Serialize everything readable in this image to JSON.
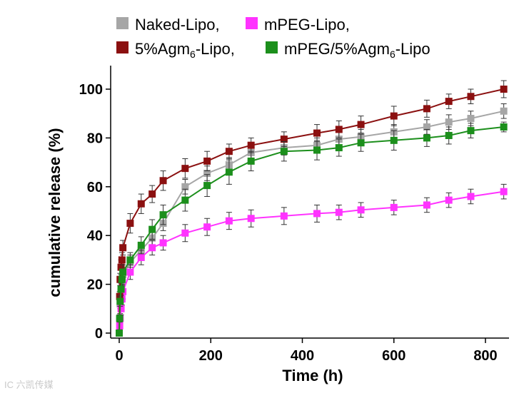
{
  "chart_data": {
    "type": "line",
    "title": "",
    "xlabel": "Time (h)",
    "ylabel": "cumulative release (%)",
    "xlim": [
      0,
      840
    ],
    "ylim": [
      0,
      110
    ],
    "x_ticks": [
      0,
      200,
      400,
      600,
      800
    ],
    "y_ticks": [
      0,
      20,
      40,
      60,
      80,
      100
    ],
    "x_tick_labels": [
      "0",
      "200",
      "400",
      "600",
      "800"
    ],
    "y_tick_labels": [
      "0",
      "20",
      "40",
      "60",
      "80",
      "100"
    ],
    "grid": false,
    "legend_position": "top",
    "x": [
      0,
      1,
      2,
      4,
      6,
      8,
      24,
      48,
      72,
      96,
      144,
      192,
      240,
      288,
      360,
      432,
      480,
      528,
      600,
      672,
      720,
      768,
      840
    ],
    "series": [
      {
        "name": "Naked-Lipo,",
        "color": "#a6a6a6",
        "values": [
          0,
          6,
          12,
          17,
          21,
          24,
          29,
          34,
          39,
          45,
          60,
          65.5,
          69,
          74,
          76,
          77,
          79.5,
          80.5,
          82.5,
          84.5,
          86.5,
          88,
          91
        ],
        "errors": [
          0,
          1.5,
          2,
          2.5,
          2.5,
          2.5,
          3,
          3,
          3,
          3,
          3,
          3,
          3,
          3,
          3,
          3,
          3,
          3,
          3,
          3,
          3,
          3,
          3
        ]
      },
      {
        "name": "mPEG-Lipo,",
        "color": "#ff33ff",
        "values": [
          0,
          3,
          6,
          10,
          14,
          17,
          25,
          31,
          35,
          37,
          41,
          43.5,
          46,
          47,
          48,
          49,
          49.5,
          50.5,
          51.5,
          52.5,
          54.5,
          56,
          58
        ],
        "errors": [
          0,
          1.5,
          2,
          2.5,
          2.5,
          3,
          3,
          3,
          3,
          3,
          3.5,
          3.5,
          3.5,
          3.5,
          3.5,
          3.5,
          3,
          3,
          3,
          3,
          3,
          3,
          3
        ]
      },
      {
        "name": "5%Agm6-Lipo,",
        "color": "#8b1010",
        "values": [
          0,
          15,
          22,
          27,
          30,
          35,
          45,
          53,
          57,
          62.5,
          67.5,
          70.5,
          74.5,
          77,
          79.5,
          82,
          83.5,
          85.5,
          89,
          92,
          95,
          97,
          100
        ],
        "errors": [
          0,
          2,
          2.5,
          3,
          3,
          3,
          4,
          4,
          3.5,
          4,
          4,
          4,
          3,
          3,
          3,
          3.5,
          3.5,
          3.5,
          4,
          3.5,
          3,
          3,
          3.5
        ]
      },
      {
        "name": "mPEG/5%Agm6-Lipo",
        "color": "#1c8f1c",
        "values": [
          0,
          6,
          13,
          18,
          22,
          25,
          30,
          36,
          42.5,
          48.5,
          54.5,
          60.5,
          66,
          70.5,
          74.5,
          75,
          76,
          78,
          79,
          80,
          81,
          83,
          84.5
        ],
        "errors": [
          0,
          1.5,
          2,
          2.5,
          2.5,
          3,
          3,
          3.5,
          4,
          4,
          4.5,
          4.5,
          5,
          4,
          4,
          4,
          3.5,
          3.5,
          4,
          3.5,
          3.5,
          3,
          2
        ]
      }
    ]
  },
  "legend": {
    "entries": [
      {
        "label": "Naked-Lipo,",
        "color": "#a6a6a6"
      },
      {
        "label": "mPEG-Lipo,",
        "color": "#ff33ff"
      },
      {
        "prefix": "5%Agm",
        "sub": "6",
        "suffix": "-Lipo,",
        "color": "#8b1010"
      },
      {
        "prefix": "mPEG/5%Agm",
        "sub": "6",
        "suffix": "-Lipo",
        "color": "#1c8f1c"
      }
    ]
  },
  "watermark": {
    "text": "IC 六凯传媒"
  }
}
